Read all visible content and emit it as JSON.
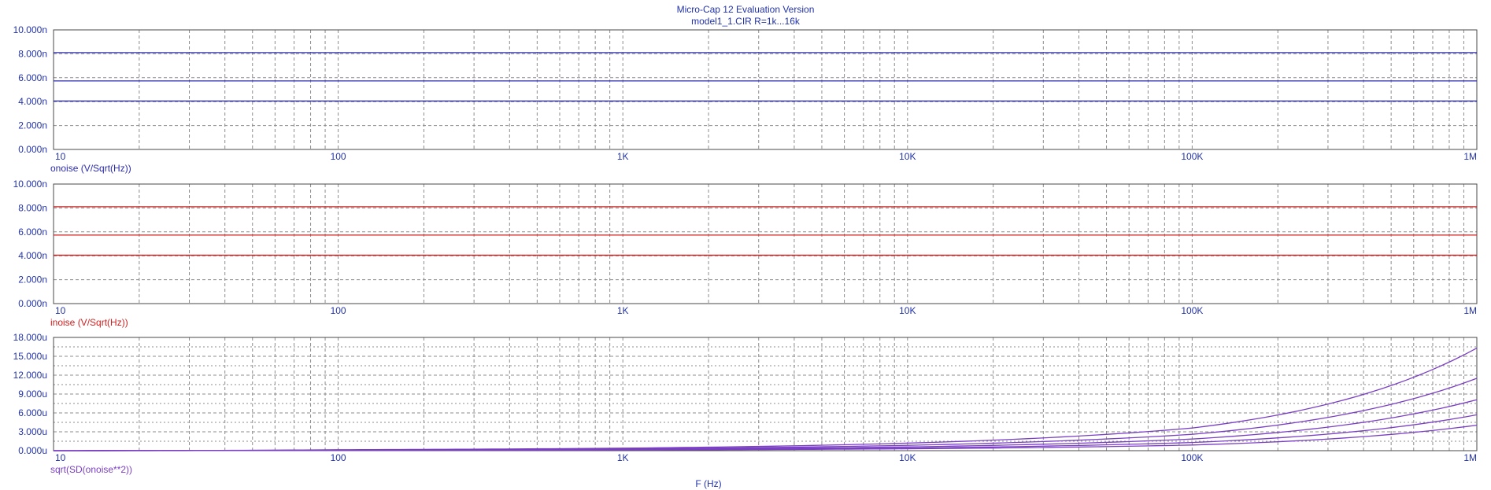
{
  "header": {
    "title": "Micro-Cap 12 Evaluation Version",
    "subtitle": "model1_1.CIR R=1k...16k"
  },
  "colors": {
    "frame": "#4a4a4a",
    "grid": "#8c8c8c",
    "text": "#2233aa",
    "onoise": "#2b2bb0",
    "inoise": "#d22020",
    "sd": "#7a3fc4"
  },
  "chart_data": [
    {
      "type": "line",
      "title": "",
      "ylabel": "onoise (V/Sqrt(Hz))",
      "xlabel": "",
      "xscale": "log",
      "xlim": [
        10,
        1000000
      ],
      "ylim": [
        0,
        10
      ],
      "y_unit": "n",
      "x_tick_labels": [
        "10",
        "100",
        "1K",
        "10K",
        "100K",
        "1M"
      ],
      "y_tick_labels": [
        "0.000n",
        "2.000n",
        "4.000n",
        "6.000n",
        "8.000n",
        "10.000n"
      ],
      "grid": true,
      "color": "#2b2bb0",
      "series": [
        {
          "x": [
            10,
            1000000
          ],
          "y": [
            4.05,
            4.05
          ]
        },
        {
          "x": [
            10,
            1000000
          ],
          "y": [
            5.73,
            5.73
          ]
        },
        {
          "x": [
            10,
            1000000
          ],
          "y": [
            8.1,
            8.1
          ]
        }
      ]
    },
    {
      "type": "line",
      "title": "",
      "ylabel": "inoise (V/Sqrt(Hz))",
      "xlabel": "",
      "xscale": "log",
      "xlim": [
        10,
        1000000
      ],
      "ylim": [
        0,
        10
      ],
      "y_unit": "n",
      "x_tick_labels": [
        "10",
        "100",
        "1K",
        "10K",
        "100K",
        "1M"
      ],
      "y_tick_labels": [
        "0.000n",
        "2.000n",
        "4.000n",
        "6.000n",
        "8.000n",
        "10.000n"
      ],
      "grid": true,
      "color": "#d22020",
      "series": [
        {
          "x": [
            10,
            1000000
          ],
          "y": [
            4.05,
            4.05
          ]
        },
        {
          "x": [
            10,
            1000000
          ],
          "y": [
            5.73,
            5.73
          ]
        },
        {
          "x": [
            10,
            1000000
          ],
          "y": [
            8.1,
            8.1
          ]
        }
      ]
    },
    {
      "type": "line",
      "title": "",
      "ylabel": "sqrt(SD(onoise**2))",
      "xlabel": "F (Hz)",
      "xscale": "log",
      "xlim": [
        10,
        1000000
      ],
      "ylim": [
        0,
        18
      ],
      "y_unit": "u",
      "x_tick_labels": [
        "10",
        "100",
        "1K",
        "10K",
        "100K",
        "1M"
      ],
      "y_tick_labels": [
        "0.000u",
        "3.000u",
        "6.000u",
        "9.000u",
        "12.000u",
        "15.000u",
        "18.000u"
      ],
      "grid": true,
      "color": "#7a3fc4",
      "series": [
        {
          "x": [
            10,
            100,
            1000,
            10000,
            100000,
            1000000
          ],
          "y": [
            0.0,
            0.15,
            0.4,
            1.2,
            3.6,
            16.3
          ]
        },
        {
          "x": [
            10,
            100,
            1000,
            10000,
            100000,
            1000000
          ],
          "y": [
            0.0,
            0.1,
            0.3,
            0.85,
            2.6,
            11.5
          ]
        },
        {
          "x": [
            10,
            100,
            1000,
            10000,
            100000,
            1000000
          ],
          "y": [
            0.0,
            0.08,
            0.22,
            0.6,
            1.85,
            8.1
          ]
        },
        {
          "x": [
            10,
            100,
            1000,
            10000,
            100000,
            1000000
          ],
          "y": [
            0.0,
            0.05,
            0.15,
            0.42,
            1.3,
            5.7
          ]
        },
        {
          "x": [
            10,
            100,
            1000,
            10000,
            100000,
            1000000
          ],
          "y": [
            0.0,
            0.03,
            0.1,
            0.3,
            0.9,
            4.05
          ]
        }
      ]
    }
  ]
}
